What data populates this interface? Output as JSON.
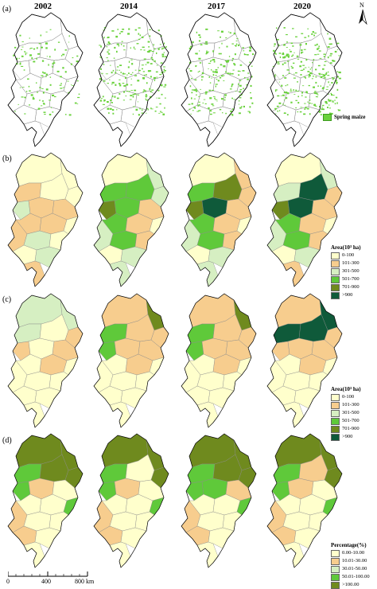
{
  "years": [
    "2002",
    "2014",
    "2017",
    "2020"
  ],
  "panels": [
    {
      "label": "(a)"
    },
    {
      "label": "(b)"
    },
    {
      "label": "(c)"
    },
    {
      "label": "(d)"
    }
  ],
  "north_label": "N",
  "legend_a": {
    "label": "Spring maize",
    "color": "#6ad23c"
  },
  "legend_b": {
    "title": "Area(10³ ha)",
    "items": [
      {
        "label": "0-100",
        "color": "#ffffcc"
      },
      {
        "label": "101-300",
        "color": "#f7cd8e"
      },
      {
        "label": "301-500",
        "color": "#d6efc2"
      },
      {
        "label": "501-700",
        "color": "#5fc93a"
      },
      {
        "label": "701-900",
        "color": "#6f8a1e"
      },
      {
        "label": ">900",
        "color": "#0f5a3a"
      }
    ]
  },
  "legend_c": {
    "title": "Area(10³ ha)",
    "items": [
      {
        "label": "0-100",
        "color": "#ffffcc"
      },
      {
        "label": "101-300",
        "color": "#f7cd8e"
      },
      {
        "label": "301-500",
        "color": "#d6efc2"
      },
      {
        "label": "501-700",
        "color": "#5fc93a"
      },
      {
        "label": "701-900",
        "color": "#6f8a1e"
      },
      {
        "label": ">900",
        "color": "#0f5a3a"
      }
    ]
  },
  "legend_d": {
    "title": "Percentage(%)",
    "items": [
      {
        "label": "0.00-10.00",
        "color": "#ffffcc"
      },
      {
        "label": "10.01-30.00",
        "color": "#f7cd8e"
      },
      {
        "label": "30.01-50.00",
        "color": "#d6efc2"
      },
      {
        "label": "50.01-100.00",
        "color": "#5fc93a"
      },
      {
        "label": ">100.00",
        "color": "#6f8a1e"
      }
    ]
  },
  "scale_bar": {
    "labels": [
      "0",
      "400",
      "800 km"
    ]
  }
}
